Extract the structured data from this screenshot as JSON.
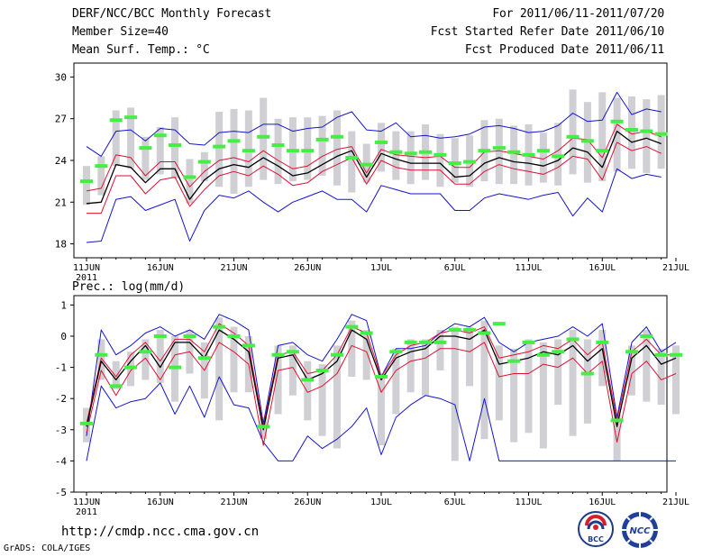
{
  "header": {
    "title": "DERF/NCC/BCC Monthly Forecast",
    "member_size": "Member Size=40",
    "variable": "Mean Surf. Temp.: °C",
    "period": "For 2011/06/11-2011/07/20",
    "start_date": "Fcst Started Refer Date 2011/06/10",
    "produced_date": "Fcst Produced Date 2011/06/11"
  },
  "footer": {
    "url": "http://cmdp.ncc.cma.gov.cn",
    "grads": "GrADS: COLA/IGES",
    "logo_bcc": "BCC",
    "logo_ncc": "NCC"
  },
  "colors": {
    "envelope": "#1414cc",
    "spread": "#dd1133",
    "mean": "#000000",
    "box": "#d0d0d4",
    "obs": "#44ee44"
  },
  "chart_data": [
    {
      "type": "line",
      "title": "",
      "ylabel": "Mean Surf. Temp.: °C",
      "xlabel": "",
      "ylim": [
        17,
        31
      ],
      "yticks": [
        18,
        21,
        24,
        27,
        30
      ],
      "ytick_labels": [
        "18",
        "21",
        "24",
        "27",
        "30"
      ],
      "xticks": [
        0,
        5,
        10,
        15,
        20,
        25,
        30,
        35,
        40
      ],
      "xtick_labels": [
        "11JUN",
        "16JUN",
        "21JUN",
        "26JUN",
        "1JUL",
        "6JUL",
        "11JUL",
        "16JUL",
        "21JUL"
      ],
      "year_label": "2011",
      "days": 39,
      "series": [
        {
          "name": "ensemble max",
          "values": [
            25.0,
            24.3,
            26.1,
            26.2,
            25.4,
            26.3,
            26.2,
            25.2,
            25.1,
            26.0,
            26.1,
            26.0,
            26.6,
            26.6,
            26.1,
            26.3,
            26.4,
            27.1,
            27.5,
            26.2,
            26.1,
            26.7,
            25.7,
            25.8,
            25.6,
            25.7,
            25.9,
            26.4,
            26.5,
            26.3,
            26.0,
            26.1,
            26.5,
            27.4,
            26.8,
            26.9,
            28.9,
            27.3,
            27.7,
            27.5
          ]
        },
        {
          "name": "ensemble min",
          "values": [
            18.1,
            18.2,
            21.2,
            21.4,
            20.4,
            20.8,
            21.2,
            18.2,
            20.4,
            21.5,
            21.3,
            21.8,
            21.0,
            20.3,
            21.0,
            21.4,
            21.8,
            21.2,
            21.2,
            20.3,
            22.2,
            21.9,
            21.6,
            21.6,
            21.6,
            20.4,
            20.4,
            21.3,
            21.6,
            21.4,
            21.2,
            21.5,
            21.7,
            20.0,
            21.3,
            20.3,
            23.4,
            22.7,
            23.0,
            22.8
          ]
        },
        {
          "name": "spread upper",
          "values": [
            21.8,
            22.0,
            24.4,
            24.2,
            22.9,
            23.9,
            23.9,
            22.1,
            23.2,
            24.0,
            24.2,
            23.9,
            24.7,
            24.0,
            23.4,
            23.6,
            24.3,
            24.8,
            25.0,
            23.1,
            24.8,
            24.4,
            24.3,
            24.2,
            24.3,
            23.5,
            23.5,
            24.6,
            24.7,
            24.5,
            24.3,
            24.1,
            24.7,
            25.6,
            25.5,
            24.2,
            26.6,
            25.9,
            26.1,
            25.7
          ]
        },
        {
          "name": "ensemble mean",
          "values": [
            20.9,
            21.0,
            23.7,
            23.5,
            22.4,
            23.4,
            23.4,
            21.2,
            22.6,
            23.4,
            23.7,
            23.5,
            24.2,
            23.6,
            22.9,
            23.1,
            23.7,
            24.3,
            24.7,
            22.8,
            24.5,
            24.1,
            23.8,
            23.8,
            23.8,
            22.8,
            22.9,
            23.8,
            24.2,
            23.9,
            23.8,
            23.6,
            24.0,
            24.9,
            24.6,
            23.5,
            26.1,
            25.3,
            25.6,
            25.2
          ]
        },
        {
          "name": "spread lower",
          "values": [
            20.2,
            20.2,
            22.9,
            22.9,
            21.6,
            22.6,
            22.8,
            20.7,
            21.9,
            22.9,
            23.2,
            22.9,
            23.6,
            23.0,
            22.2,
            22.4,
            23.2,
            23.7,
            24.2,
            22.3,
            24.0,
            23.5,
            23.3,
            23.3,
            23.3,
            22.3,
            22.3,
            23.2,
            23.7,
            23.4,
            23.2,
            23.0,
            23.5,
            24.3,
            24.1,
            22.6,
            25.3,
            24.7,
            25.0,
            24.5
          ]
        }
      ],
      "obs": [
        22.5,
        23.6,
        26.9,
        27.1,
        24.9,
        25.8,
        25.1,
        22.8,
        23.9,
        25.0,
        25.4,
        24.7,
        25.7,
        25.1,
        24.7,
        24.7,
        25.5,
        25.7,
        24.2,
        23.7,
        25.3,
        24.6,
        24.5,
        24.6,
        24.4,
        23.8,
        23.9,
        24.7,
        24.9,
        24.6,
        24.4,
        24.7,
        24.3,
        25.7,
        25.4,
        24.7,
        26.8,
        26.2,
        26.1,
        25.9
      ],
      "box_top": [
        23.6,
        24.3,
        27.6,
        27.8,
        25.7,
        26.4,
        27.1,
        24.1,
        24.6,
        27.5,
        27.7,
        27.6,
        28.5,
        27.0,
        27.1,
        27.1,
        27.2,
        27.6,
        26.1,
        25.2,
        26.7,
        26.1,
        26.1,
        26.6,
        25.9,
        25.6,
        25.8,
        26.9,
        27.0,
        26.5,
        26.6,
        26.0,
        26.7,
        29.1,
        28.2,
        28.9,
        28.5,
        28.6,
        28.4,
        28.7
      ],
      "box_bottom": [
        20.8,
        21.5,
        23.6,
        23.4,
        22.6,
        23.0,
        22.7,
        20.9,
        22.5,
        22.1,
        21.6,
        22.1,
        22.6,
        22.3,
        22.5,
        22.6,
        22.9,
        22.2,
        21.7,
        22.4,
        23.2,
        22.6,
        22.3,
        22.6,
        22.1,
        22.4,
        22.1,
        22.5,
        22.3,
        22.3,
        22.2,
        22.4,
        22.2,
        23.0,
        22.4,
        22.5,
        23.2,
        23.4,
        23.1,
        23.4
      ]
    },
    {
      "type": "line",
      "title": "Prec.: log(mm/d)",
      "ylabel": "Prec.: log(mm/d)",
      "xlabel": "",
      "ylim": [
        -5,
        1.3
      ],
      "yticks": [
        -5,
        -4,
        -3,
        -2,
        -1,
        0,
        1
      ],
      "ytick_labels": [
        "-5",
        "-4",
        "-3",
        "-2",
        "-1",
        "0",
        "1"
      ],
      "xticks": [
        0,
        5,
        10,
        15,
        20,
        25,
        30,
        35,
        40
      ],
      "xtick_labels": [
        "11JUN",
        "16JUN",
        "21JUN",
        "26JUN",
        "1JUL",
        "6JUL",
        "11JUL",
        "16JUL",
        "21JUL"
      ],
      "year_label": "2011",
      "days": 39,
      "series": [
        {
          "name": "ensemble max",
          "values": [
            -3.2,
            0.2,
            -0.6,
            -0.3,
            0.1,
            0.3,
            0.0,
            0.2,
            -0.1,
            0.7,
            0.5,
            0.2,
            -2.8,
            -0.3,
            -0.2,
            -0.6,
            -0.8,
            -0.1,
            0.7,
            0.5,
            -1.3,
            -0.4,
            -0.4,
            -0.3,
            0.1,
            0.4,
            0.3,
            0.6,
            -0.2,
            -0.5,
            -0.2,
            -0.1,
            0.0,
            0.3,
            0.0,
            0.4,
            -2.6,
            -0.2,
            0.3,
            -0.5,
            -0.2
          ]
        },
        {
          "name": "ensemble min",
          "values": [
            -4.0,
            -1.6,
            -2.3,
            -2.1,
            -2.0,
            -1.5,
            -2.5,
            -1.6,
            -2.6,
            -1.3,
            -2.2,
            -2.3,
            -3.4,
            -4.0,
            -4.0,
            -3.2,
            -3.6,
            -3.3,
            -2.9,
            -2.3,
            -3.8,
            -2.6,
            -2.2,
            -1.9,
            -2.0,
            -2.2,
            -4.0,
            -2.0,
            -4.0,
            -4.0,
            -4.0,
            -4.0,
            -4.0,
            -4.0,
            -4.0,
            -4.0,
            -4.0,
            -4.0,
            -4.0,
            -4.0,
            -4.0
          ]
        },
        {
          "name": "spread upper",
          "values": [
            -2.8,
            -0.7,
            -1.3,
            -0.6,
            -0.2,
            -0.8,
            -0.1,
            -0.1,
            -0.5,
            0.4,
            0.1,
            -0.3,
            -2.9,
            -0.6,
            -0.5,
            -1.2,
            -1.1,
            -0.6,
            0.3,
            0.1,
            -1.3,
            -0.6,
            -0.3,
            -0.2,
            0.1,
            0.2,
            0.1,
            0.3,
            -0.7,
            -0.6,
            -0.5,
            -0.3,
            -0.4,
            -0.1,
            -0.6,
            -0.2,
            -2.7,
            -0.5,
            -0.1,
            -0.6,
            -0.6
          ]
        },
        {
          "name": "ensemble mean",
          "values": [
            -2.9,
            -0.8,
            -1.4,
            -0.8,
            -0.3,
            -1.0,
            -0.2,
            -0.2,
            -0.7,
            0.2,
            -0.1,
            -0.5,
            -3.0,
            -0.7,
            -0.6,
            -1.4,
            -1.2,
            -0.8,
            0.2,
            -0.1,
            -1.4,
            -0.7,
            -0.5,
            -0.4,
            0.0,
            0.0,
            -0.1,
            0.2,
            -0.9,
            -0.8,
            -0.7,
            -0.5,
            -0.6,
            -0.3,
            -0.8,
            -0.4,
            -2.9,
            -0.7,
            -0.3,
            -0.9,
            -0.7
          ]
        },
        {
          "name": "spread lower",
          "values": [
            -3.1,
            -1.1,
            -1.9,
            -1.1,
            -0.7,
            -1.4,
            -0.6,
            -0.5,
            -1.1,
            -0.2,
            -0.5,
            -0.9,
            -3.5,
            -1.1,
            -1.0,
            -1.8,
            -1.6,
            -1.2,
            -0.3,
            -0.5,
            -1.8,
            -1.1,
            -0.8,
            -0.7,
            -0.4,
            -0.4,
            -0.5,
            -0.2,
            -1.3,
            -1.2,
            -1.2,
            -0.9,
            -1.0,
            -0.7,
            -1.2,
            -0.8,
            -3.4,
            -1.2,
            -0.8,
            -1.4,
            -1.2
          ]
        }
      ],
      "obs": [
        -2.8,
        -0.6,
        -1.6,
        -1.0,
        -0.5,
        0.0,
        -1.0,
        0.0,
        -0.7,
        0.3,
        0.0,
        -0.3,
        -2.9,
        -0.6,
        -0.5,
        -1.4,
        -1.1,
        -0.6,
        0.3,
        0.1,
        -1.3,
        -0.5,
        -0.2,
        -0.2,
        -0.2,
        0.2,
        0.2,
        0.1,
        0.4,
        -0.8,
        -0.2,
        -0.6,
        -0.5,
        -0.1,
        -1.2,
        -0.2,
        -2.7,
        -0.5,
        0.0,
        -0.6,
        -0.6
      ],
      "box_top": [
        -2.3,
        -0.1,
        -0.8,
        -0.5,
        -0.1,
        0.2,
        0.0,
        0.2,
        -0.2,
        0.6,
        0.3,
        0.0,
        -2.6,
        -0.3,
        -0.3,
        -0.8,
        -0.9,
        -0.3,
        0.5,
        0.2,
        -1.2,
        -0.4,
        -0.1,
        -0.1,
        0.2,
        0.3,
        0.3,
        0.5,
        -0.3,
        -0.4,
        -0.1,
        -0.2,
        -0.1,
        0.2,
        -0.1,
        0.2,
        -2.5,
        -0.3,
        0.2,
        -0.4,
        -0.3
      ],
      "box_bottom": [
        -3.4,
        -1.4,
        -1.7,
        -1.6,
        -1.4,
        -1.5,
        -2.1,
        -1.2,
        -2.0,
        -2.7,
        -1.8,
        -1.8,
        -3.3,
        -2.5,
        -1.9,
        -2.7,
        -3.2,
        -3.6,
        -1.3,
        -1.4,
        -3.5,
        -2.5,
        -1.8,
        -1.9,
        -1.1,
        -4.0,
        -1.6,
        -3.3,
        -2.7,
        -3.4,
        -3.1,
        -3.6,
        -2.2,
        -3.2,
        -2.8,
        -1.6,
        -4.0,
        -1.9,
        -2.1,
        -2.2,
        -2.5
      ]
    }
  ]
}
